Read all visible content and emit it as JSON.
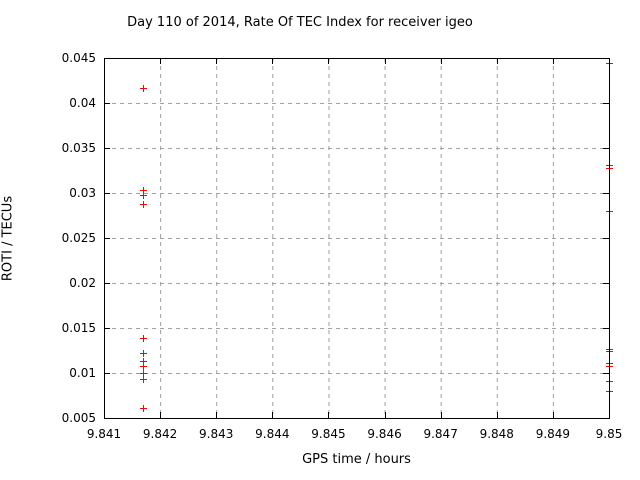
{
  "title": "Day 110 of 2014, Rate Of TEC Index for receiver igeo",
  "colors": {
    "background": "#ffffff",
    "border": "#000000",
    "grid": "#a0a0a0",
    "marker": "#ff0000",
    "text": "#000000"
  },
  "chart_data": {
    "type": "scatter",
    "title": "Day 110 of 2014, Rate Of TEC Index for receiver igeo",
    "xlabel": "GPS time / hours",
    "ylabel": "ROTI / TECUs",
    "xlim": [
      9.841,
      9.85
    ],
    "ylim": [
      0.005,
      0.045
    ],
    "grid": true,
    "grid_style": "dashed",
    "legend": "none",
    "marker": "plus",
    "marker_color": "#ff0000",
    "x_ticks": [
      {
        "v": 9.841,
        "label": "9.841"
      },
      {
        "v": 9.842,
        "label": "9.842"
      },
      {
        "v": 9.843,
        "label": "9.843"
      },
      {
        "v": 9.844,
        "label": "9.844"
      },
      {
        "v": 9.845,
        "label": "9.845"
      },
      {
        "v": 9.846,
        "label": "9.846"
      },
      {
        "v": 9.847,
        "label": "9.847"
      },
      {
        "v": 9.848,
        "label": "9.848"
      },
      {
        "v": 9.849,
        "label": "9.849"
      },
      {
        "v": 9.85,
        "label": "9.85"
      }
    ],
    "y_ticks": [
      {
        "v": 0.005,
        "label": "0.005"
      },
      {
        "v": 0.01,
        "label": "0.01"
      },
      {
        "v": 0.015,
        "label": "0.015"
      },
      {
        "v": 0.02,
        "label": "0.02"
      },
      {
        "v": 0.025,
        "label": "0.025"
      },
      {
        "v": 0.03,
        "label": "0.03"
      },
      {
        "v": 0.035,
        "label": "0.035"
      },
      {
        "v": 0.04,
        "label": "0.04"
      },
      {
        "v": 0.045,
        "label": "0.045"
      }
    ],
    "series": [
      {
        "name": "ROTI",
        "points": [
          [
            9.8417,
            0.0417
          ],
          [
            9.8417,
            0.0303
          ],
          [
            9.8417,
            0.0298
          ],
          [
            9.8417,
            0.0288
          ],
          [
            9.8417,
            0.0139
          ],
          [
            9.8417,
            0.0122
          ],
          [
            9.8417,
            0.0113
          ],
          [
            9.8417,
            0.0108
          ],
          [
            9.8417,
            0.01
          ],
          [
            9.8417,
            0.0093
          ],
          [
            9.8417,
            0.0061
          ],
          [
            9.85,
            0.0445
          ],
          [
            9.85,
            0.0331
          ],
          [
            9.85,
            0.0328
          ],
          [
            9.85,
            0.028
          ],
          [
            9.85,
            0.0127
          ],
          [
            9.85,
            0.0124
          ],
          [
            9.85,
            0.0111
          ],
          [
            9.85,
            0.0108
          ],
          [
            9.85,
            0.0091
          ],
          [
            9.85,
            0.008
          ]
        ]
      }
    ]
  }
}
